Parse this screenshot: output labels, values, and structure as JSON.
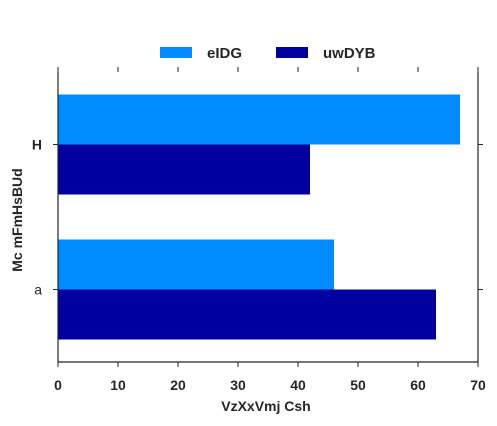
{
  "chart_data": {
    "type": "bar",
    "orientation": "horizontal",
    "categories": [
      "H",
      "a"
    ],
    "series": [
      {
        "name": "eIDG",
        "values": [
          67,
          46
        ],
        "color": "#008cff"
      },
      {
        "name": "uwDYB",
        "values": [
          42,
          63
        ],
        "color": "#00009f"
      }
    ],
    "xlabel": "VzXxVmj Csh",
    "ylabel": "Mc mFmHsBUd",
    "xlim": [
      0,
      70
    ],
    "xticks": [
      0,
      10,
      20,
      30,
      40,
      50,
      60,
      70
    ],
    "grid": false,
    "legend_position": "top-center"
  }
}
